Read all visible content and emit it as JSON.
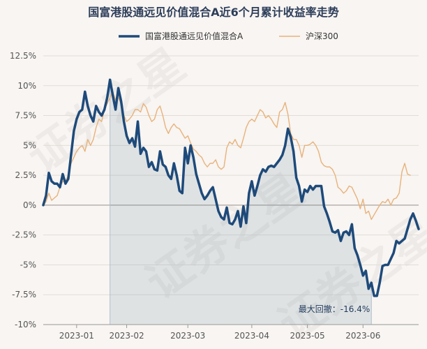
{
  "chart_data": {
    "type": "line",
    "title": "国富港股通远见价值混合A近6个月累计收益率走势",
    "xlabel": "",
    "ylabel": "",
    "ylim": [
      -10,
      12.5
    ],
    "y_ticks": [
      12.5,
      10,
      7.5,
      5,
      2.5,
      0,
      -2.5,
      -5,
      -7.5,
      -10
    ],
    "y_tick_labels": [
      "12.5%",
      "10%",
      "7.5%",
      "5%",
      "2.5%",
      "0%",
      "-2.5%",
      "-5%",
      "-7.5%",
      "-10%"
    ],
    "x_tick_labels": [
      "2023-01",
      "2023-02",
      "2023-03",
      "2023-04",
      "2023-05",
      "2023-06"
    ],
    "x_tick_index": [
      12,
      30,
      52,
      75,
      95,
      115
    ],
    "legend_position": "top-center",
    "grid": true,
    "drawdown_shade_range": [
      24,
      118
    ],
    "annotation": {
      "text": "最大回撤：-16.4%",
      "x_index": 118,
      "y": -8.0
    },
    "series": [
      {
        "name": "国富港股通远见价值混合A",
        "color": "#1e4a7a",
        "values": [
          0,
          0.8,
          2.7,
          2,
          1.8,
          1.8,
          1.5,
          2.6,
          1.8,
          2.2,
          4.2,
          6.2,
          7.2,
          7.8,
          8,
          9.5,
          8.3,
          7.5,
          7,
          8.3,
          7.8,
          7.5,
          8,
          9,
          10.5,
          9.2,
          8,
          9.8,
          8.7,
          7,
          5.8,
          5.2,
          5.6,
          4.9,
          7,
          4.3,
          4.8,
          4.5,
          3.2,
          3.6,
          3,
          2.9,
          4.5,
          3.4,
          3.2,
          2.5,
          2.2,
          3.5,
          2.5,
          1.2,
          1,
          4.8,
          3.5,
          5,
          4,
          2.6,
          1.8,
          1,
          0.5,
          0.8,
          1.2,
          1.5,
          0.5,
          -0.5,
          -1,
          -1.2,
          -0.2,
          -1.5,
          -1.6,
          -1.2,
          -0.5,
          -1.8,
          -0.1,
          -1.5,
          1,
          2,
          0.8,
          1.6,
          2.5,
          3,
          2.8,
          3.2,
          3.3,
          3.2,
          3.5,
          3.8,
          4.2,
          5,
          6.4,
          5.7,
          4.5,
          2.3,
          1.6,
          0.3,
          1.3,
          1.1,
          1.6,
          1.3,
          1.6,
          1.6,
          1.6,
          -0.1,
          -0.7,
          -1.4,
          -2.2,
          -2.3,
          -2.1,
          -3,
          -2.3,
          -2.2,
          -2.5,
          -1.6,
          -3.6,
          -4.2,
          -5,
          -5.9,
          -5.5,
          -7,
          -6.5,
          -7.6,
          -7.6,
          -6.5,
          -5.1,
          -5,
          -5,
          -4.5,
          -4,
          -3,
          -3.2,
          -3,
          -2.8,
          -2,
          -1.2,
          -0.7,
          -1.3,
          -2
        ]
      },
      {
        "name": "沪深300",
        "color": "#e8b27a",
        "values": [
          0,
          0.3,
          1,
          0.4,
          0.6,
          0.8,
          1.5,
          2,
          2,
          2.5,
          3.5,
          4,
          4.5,
          4.8,
          5,
          4.5,
          5.5,
          5,
          5.5,
          6.5,
          7.2,
          7,
          8,
          8.5,
          9,
          9.5,
          8.8,
          9,
          8.5,
          7.5,
          7,
          7.2,
          7.5,
          8,
          8,
          7.8,
          8.5,
          8.2,
          7.5,
          7,
          7.2,
          8,
          8.3,
          7.5,
          6.5,
          6,
          6.5,
          6.8,
          6.5,
          6.4,
          6,
          5.6,
          5.8,
          5.2,
          4.7,
          4.5,
          4.2,
          4,
          3.5,
          3.2,
          3.5,
          3.5,
          3.8,
          3.2,
          3,
          3.2,
          4.8,
          5.3,
          5.1,
          5.5,
          5,
          4.8,
          5.6,
          6.5,
          7,
          7.2,
          7,
          7.5,
          8,
          7.8,
          7.3,
          7.5,
          7.2,
          6.8,
          6.5,
          7.8,
          8,
          8.6,
          7.6,
          6,
          5.5,
          5.5,
          5,
          4,
          5,
          5,
          5.1,
          5.3,
          5,
          4.5,
          3.6,
          3.3,
          3.2,
          3.2,
          3,
          2.5,
          1.5,
          1.3,
          1,
          1.2,
          1.6,
          1.5,
          1,
          0.5,
          -0.3,
          0.5,
          -0.7,
          -0.5,
          -1.2,
          -0.8,
          -0.4,
          0,
          0.3,
          0.2,
          0.5,
          0,
          0.5,
          0.6,
          1,
          2.8,
          3.5,
          2.6,
          2.5
        ]
      }
    ]
  },
  "watermarks": [
    "证券之星",
    "证券之星",
    "证券之星"
  ]
}
